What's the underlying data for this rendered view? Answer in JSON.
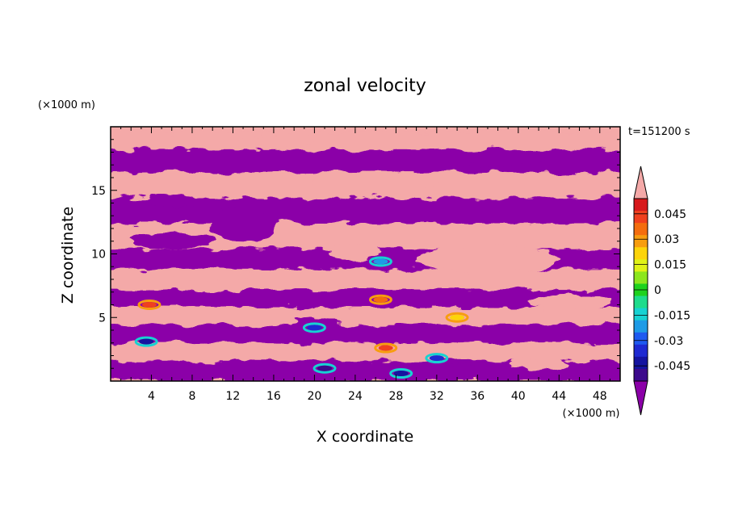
{
  "chart_data": {
    "type": "heatmap",
    "title": "zonal velocity",
    "time_label": "t=151200 s",
    "xlabel": "X coordinate",
    "ylabel": "Z coordinate",
    "x_unit": "(×1000 m)",
    "y_unit": "(×1000 m)",
    "xlim": [
      0,
      50
    ],
    "ylim": [
      0,
      20
    ],
    "x_ticks": [
      4,
      8,
      12,
      16,
      20,
      24,
      28,
      32,
      36,
      40,
      44,
      48
    ],
    "y_ticks": [
      5,
      10,
      15
    ],
    "colorbar": {
      "labels": [
        "0.045",
        "0.03",
        "0.015",
        "0",
        "-0.015",
        "-0.03",
        "-0.045"
      ],
      "label_values": [
        0.045,
        0.03,
        0.015,
        0,
        -0.015,
        -0.03,
        -0.045
      ],
      "range": [
        -0.054,
        0.054
      ],
      "colors_top_to_bottom": [
        "#f4a9a8",
        "#d7191c",
        "#f0401e",
        "#f46d0e",
        "#f79d0f",
        "#fcd40a",
        "#e0f216",
        "#8ce61e",
        "#1ed21e",
        "#1edc8c",
        "#16d2d2",
        "#1e9be6",
        "#1e5af0",
        "#1e2ad2",
        "#1414a0",
        "#3c0a8c",
        "#8b00a8"
      ]
    },
    "regions": {
      "positive": "#f4a9a8",
      "negative": "#8b00a8"
    },
    "bands": [
      {
        "sign": "positive",
        "z": [
          18.2,
          19.6
        ],
        "x": [
          0,
          50
        ]
      },
      {
        "sign": "negative",
        "z": [
          16.4,
          18.2
        ],
        "x": [
          0,
          50
        ]
      },
      {
        "sign": "positive",
        "z": [
          14.4,
          16.4
        ],
        "x": [
          0,
          50
        ]
      },
      {
        "sign": "negative",
        "z": [
          12.4,
          14.4
        ],
        "x": [
          0,
          50
        ]
      },
      {
        "sign": "positive",
        "z": [
          10.4,
          12.4
        ],
        "x": [
          0,
          50
        ]
      },
      {
        "sign": "negative",
        "z": [
          8.8,
          10.4
        ],
        "x": [
          0,
          50
        ]
      },
      {
        "sign": "positive",
        "z": [
          7.2,
          8.8
        ],
        "x": [
          0,
          50
        ]
      },
      {
        "sign": "negative",
        "z": [
          5.8,
          7.2
        ],
        "x": [
          0,
          50
        ]
      },
      {
        "sign": "positive",
        "z": [
          4.4,
          5.8
        ],
        "x": [
          0,
          50
        ]
      },
      {
        "sign": "negative",
        "z": [
          3.0,
          4.4
        ],
        "x": [
          0,
          50
        ]
      },
      {
        "sign": "positive",
        "z": [
          1.6,
          3.0
        ],
        "x": [
          0,
          50
        ]
      },
      {
        "sign": "negative",
        "z": [
          0,
          1.6
        ],
        "x": [
          0,
          50
        ]
      }
    ],
    "blobs": [
      {
        "sign": "negative",
        "x": 13,
        "z": 12.3,
        "rx": 3.2,
        "rz": 1.3
      },
      {
        "sign": "positive",
        "x": 26,
        "z": 15.6,
        "rx": 6.5,
        "rz": 0.8
      },
      {
        "sign": "negative",
        "x": 38,
        "z": 17.6,
        "rx": 5.0,
        "rz": 0.7
      },
      {
        "sign": "positive",
        "x": 46,
        "z": 11.5,
        "rx": 3.5,
        "rz": 1.0
      },
      {
        "sign": "positive",
        "x": 24,
        "z": 10.1,
        "rx": 2.5,
        "rz": 0.6
      },
      {
        "sign": "positive",
        "x": 37,
        "z": 9.6,
        "rx": 7.0,
        "rz": 1.1
      },
      {
        "sign": "negative",
        "x": 6,
        "z": 11.0,
        "rx": 4.0,
        "rz": 0.6
      },
      {
        "sign": "positive",
        "x": 10,
        "z": 8.3,
        "rx": 4.0,
        "rz": 0.6
      },
      {
        "sign": "negative",
        "x": 20,
        "z": 4.4,
        "rx": 2.0,
        "rz": 0.5
      },
      {
        "sign": "negative",
        "x": 3.5,
        "z": 3.4,
        "rx": 1.2,
        "rz": 0.5
      },
      {
        "sign": "positive",
        "x": 45,
        "z": 6.2,
        "rx": 4.0,
        "rz": 0.6
      },
      {
        "sign": "positive",
        "x": 42,
        "z": 1.3,
        "rx": 3.0,
        "rz": 0.5
      },
      {
        "sign": "negative",
        "x": 6,
        "z": 14.2,
        "rx": 2.5,
        "rz": 0.5
      },
      {
        "sign": "positive",
        "x": 16,
        "z": 18.9,
        "rx": 4.0,
        "rz": 0.5
      },
      {
        "sign": "negative",
        "x": 31,
        "z": 0.8,
        "rx": 5.0,
        "rz": 0.7
      }
    ],
    "extremes": [
      {
        "value": 0.04,
        "x": 3.8,
        "z": 6.0
      },
      {
        "value": 0.03,
        "x": 26.5,
        "z": 6.4
      },
      {
        "value": -0.04,
        "x": 28.5,
        "z": 0.6
      },
      {
        "value": -0.045,
        "x": 21,
        "z": 1.0
      },
      {
        "value": -0.03,
        "x": 32,
        "z": 1.8
      },
      {
        "value": -0.03,
        "x": 20,
        "z": 4.2
      },
      {
        "value": -0.02,
        "x": 26.5,
        "z": 9.4
      },
      {
        "value": -0.035,
        "x": 3.5,
        "z": 3.1
      },
      {
        "value": 0.035,
        "x": 27,
        "z": 2.6
      },
      {
        "value": 0.02,
        "x": 34,
        "z": 5.0
      }
    ]
  }
}
